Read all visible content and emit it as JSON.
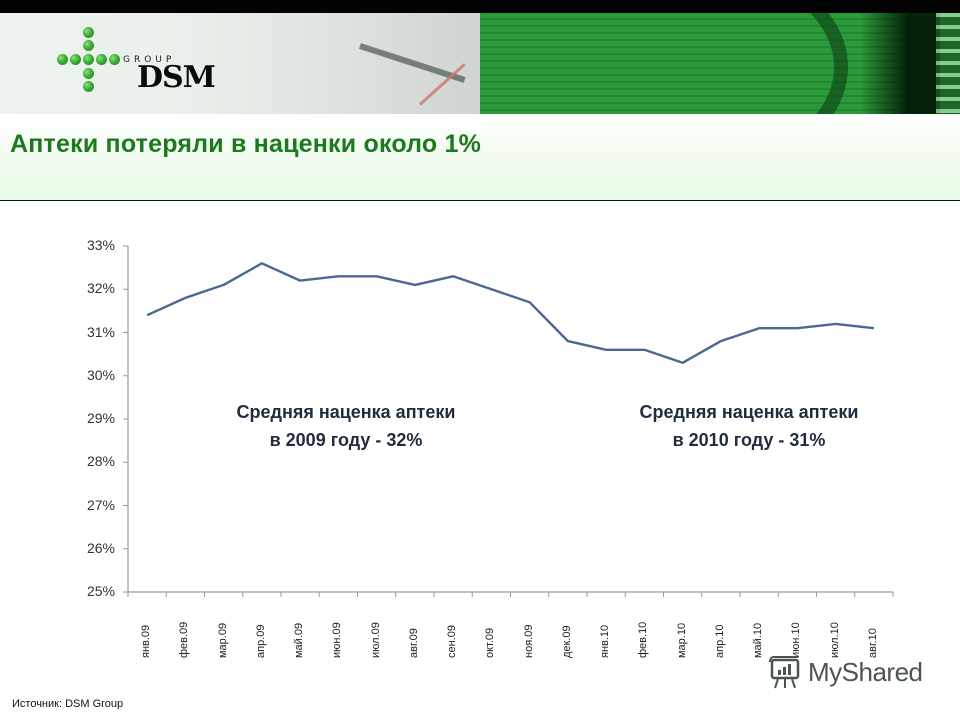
{
  "header": {
    "logo": {
      "group_label": "GROUP",
      "brand_label": "DSM"
    },
    "brand_color": "#1c7a1e"
  },
  "slide": {
    "title": "Аптеки потеряли в наценки около 1%",
    "annotations": [
      {
        "line1": "Средняя наценка аптеки",
        "line2": "в 2009 году - 32%"
      },
      {
        "line1": "Средняя наценка аптеки",
        "line2": "в 2010 году - 31%"
      }
    ],
    "source": "Источник: DSM Group"
  },
  "watermark": {
    "label": "MyShared"
  },
  "chart_data": {
    "type": "line",
    "title": "",
    "xlabel": "",
    "ylabel": "",
    "categories": [
      "янв.09",
      "фев.09",
      "мар.09",
      "апр.09",
      "май.09",
      "июн.09",
      "июл.09",
      "авг.09",
      "сен.09",
      "окт.09",
      "ноя.09",
      "дек.09",
      "янв.10",
      "фев.10",
      "мар.10",
      "апр.10",
      "май.10",
      "июн.10",
      "июл.10",
      "авг.10"
    ],
    "series": [
      {
        "name": "Средняя наценка аптеки",
        "color": "#4a6890",
        "values": [
          31.4,
          31.8,
          32.1,
          32.6,
          32.2,
          32.3,
          32.3,
          32.1,
          32.3,
          32.0,
          31.7,
          30.8,
          30.6,
          30.6,
          30.3,
          30.8,
          31.1,
          31.1,
          31.2,
          31.1
        ]
      }
    ],
    "yticks": [
      "33%",
      "32%",
      "31%",
      "30%",
      "29%",
      "28%",
      "27%",
      "26%",
      "25%"
    ],
    "ylim": [
      25,
      33
    ],
    "y_unit": "%",
    "grid": false,
    "legend": "none",
    "annotations": [
      "Средняя наценка аптеки в 2009 году - 32%",
      "Средняя наценка аптеки в 2010 году - 31%"
    ]
  }
}
